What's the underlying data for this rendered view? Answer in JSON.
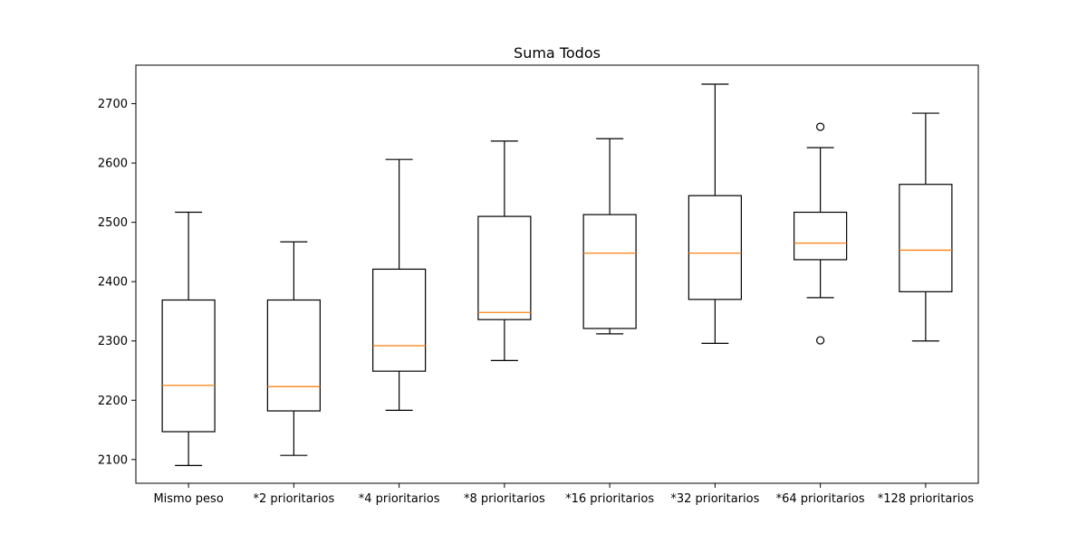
{
  "chart_data": {
    "type": "boxplot",
    "title": "Suma Todos",
    "xlabel": "",
    "ylabel": "",
    "ylim": [
      2060,
      2765
    ],
    "yticks": [
      2100,
      2200,
      2300,
      2400,
      2500,
      2600,
      2700
    ],
    "categories": [
      "Mismo peso",
      "*2 prioritarios",
      "*4 prioritarios",
      "*8 prioritarios",
      "*16 prioritarios",
      "*32 prioritarios",
      "*64 prioritarios",
      "*128 prioritarios"
    ],
    "boxes": [
      {
        "whisker_low": 2090,
        "q1": 2147,
        "median": 2225,
        "q3": 2369,
        "whisker_high": 2517,
        "outliers": []
      },
      {
        "whisker_low": 2107,
        "q1": 2182,
        "median": 2223,
        "q3": 2369,
        "whisker_high": 2467,
        "outliers": []
      },
      {
        "whisker_low": 2183,
        "q1": 2249,
        "median": 2292,
        "q3": 2421,
        "whisker_high": 2606,
        "outliers": []
      },
      {
        "whisker_low": 2267,
        "q1": 2336,
        "median": 2348,
        "q3": 2510,
        "whisker_high": 2637,
        "outliers": []
      },
      {
        "whisker_low": 2312,
        "q1": 2321,
        "median": 2448,
        "q3": 2513,
        "whisker_high": 2641,
        "outliers": []
      },
      {
        "whisker_low": 2296,
        "q1": 2370,
        "median": 2448,
        "q3": 2545,
        "whisker_high": 2733,
        "outliers": []
      },
      {
        "whisker_low": 2373,
        "q1": 2437,
        "median": 2465,
        "q3": 2517,
        "whisker_high": 2626,
        "outliers": [
          2661,
          2301
        ]
      },
      {
        "whisker_low": 2300,
        "q1": 2383,
        "median": 2453,
        "q3": 2564,
        "whisker_high": 2684,
        "outliers": []
      }
    ],
    "grid": false,
    "legend": "none",
    "colors": {
      "box": "#000000",
      "median": "#ff7f0e",
      "background": "#ffffff"
    }
  }
}
